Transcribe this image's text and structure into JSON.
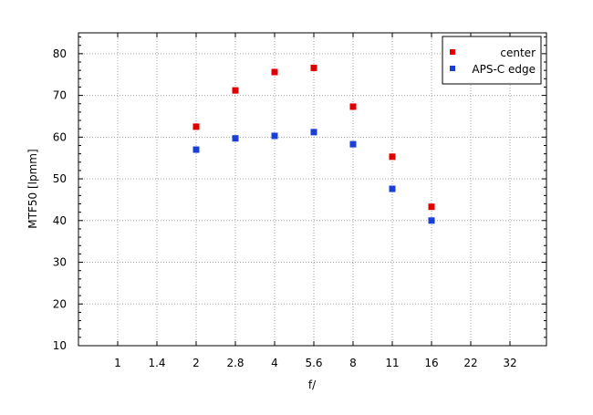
{
  "chart_data": {
    "type": "scatter",
    "xlabel": "f/",
    "ylabel": "MTF50 [lpmm]",
    "x_ticks": [
      "1",
      "1.4",
      "2",
      "2.8",
      "4",
      "5.6",
      "8",
      "11",
      "16",
      "22",
      "32"
    ],
    "y_ticks": [
      10,
      20,
      30,
      40,
      50,
      60,
      70,
      80
    ],
    "ylim": [
      10,
      85
    ],
    "grid": true,
    "legend_position": "top-right",
    "series": [
      {
        "name": "center",
        "color": "#e00000",
        "points": [
          {
            "x": "2",
            "y": 62.5
          },
          {
            "x": "2.8",
            "y": 71.2
          },
          {
            "x": "4",
            "y": 75.6
          },
          {
            "x": "5.6",
            "y": 76.6
          },
          {
            "x": "8",
            "y": 67.3
          },
          {
            "x": "11",
            "y": 55.3
          },
          {
            "x": "16",
            "y": 43.3
          }
        ]
      },
      {
        "name": "APS-C edge",
        "color": "#1a3fd6",
        "points": [
          {
            "x": "2",
            "y": 57.0
          },
          {
            "x": "2.8",
            "y": 59.7
          },
          {
            "x": "4",
            "y": 60.3
          },
          {
            "x": "5.6",
            "y": 61.2
          },
          {
            "x": "8",
            "y": 58.3
          },
          {
            "x": "11",
            "y": 47.6
          },
          {
            "x": "16",
            "y": 40.0
          }
        ]
      }
    ]
  }
}
